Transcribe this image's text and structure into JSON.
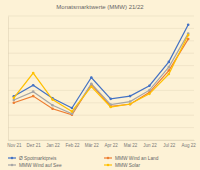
{
  "chart_data": {
    "type": "line",
    "title": "Monatsmarktwerte (MMW) 21/22",
    "categories": [
      "Nov 21",
      "Dez 21",
      "Jan 22",
      "Feb 22",
      "Mär 22",
      "Apr 22",
      "Mai 22",
      "Jun 22",
      "Jul 22",
      "Aug 22"
    ],
    "series": [
      {
        "name": "Ø Spotmarktpreis",
        "color": "#4472c4",
        "marker": "circle",
        "values": [
          17.6,
          22.1,
          16.8,
          12.9,
          25.2,
          16.6,
          17.7,
          21.9,
          31.5,
          46.5
        ]
      },
      {
        "name": "MMW Wind an Land",
        "color": "#ed7d31",
        "marker": "circle",
        "values": [
          15.0,
          17.7,
          12.6,
          10.2,
          22.4,
          13.6,
          14.4,
          19.2,
          28.0,
          40.7
        ]
      },
      {
        "name": "MMW Wind auf See",
        "color": "#a5a5a5",
        "marker": "circle",
        "values": [
          16.1,
          19.5,
          14.0,
          10.6,
          22.7,
          14.3,
          15.5,
          20.1,
          29.4,
          42.9
        ]
      },
      {
        "name": "MMW Solar",
        "color": "#ffc000",
        "marker": "circle",
        "values": [
          17.0,
          27.0,
          16.3,
          11.5,
          21.5,
          13.3,
          14.5,
          18.6,
          26.6,
          42.3
        ]
      }
    ],
    "ylim": [
      0,
      50
    ],
    "yticks": [
      0,
      5,
      10,
      15,
      20,
      25,
      30,
      35,
      40,
      45,
      50
    ],
    "grid": true,
    "legend": "bottom",
    "tick_labels": "x"
  }
}
